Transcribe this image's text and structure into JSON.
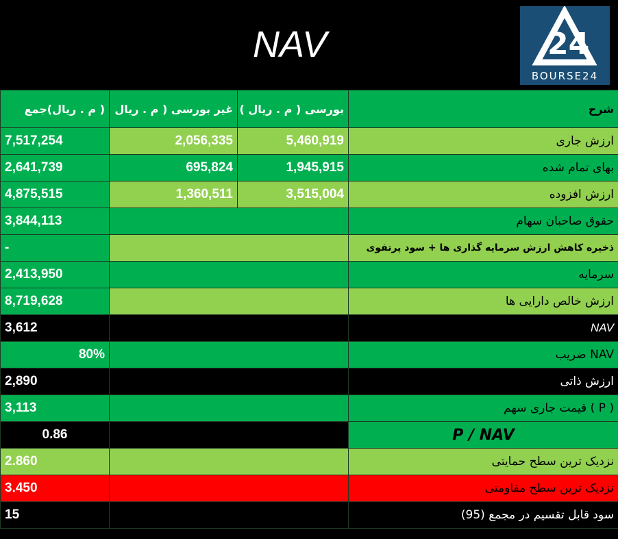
{
  "title": "NAV",
  "logo_text": "BOURSE24",
  "logo_mark": "24",
  "headers": {
    "total": "( م . ريال)جمع",
    "nonbourse": "غیر بورسی ( م . ریال )",
    "bourse": "بورسی ( م . ریال )",
    "desc": "شرح"
  },
  "rows": {
    "r1": {
      "total": "7,517,254",
      "nonbourse": "2,056,335",
      "bourse": "5,460,919",
      "label": "ارزش جاری"
    },
    "r2": {
      "total": "2,641,739",
      "nonbourse": "695,824",
      "bourse": "1,945,915",
      "label": "بهای تمام شده"
    },
    "r3": {
      "total": "4,875,515",
      "nonbourse": "1,360,511",
      "bourse": "3,515,004",
      "label": "ارزش افزوده"
    },
    "r4": {
      "total": "3,844,113",
      "label": "حقوق صاحبان سهام"
    },
    "r5": {
      "total": "-",
      "label": "ذخیره کاهش ارزش سرمایه گذاری ها + سود پرتفوی"
    },
    "r6": {
      "total": "2,413,950",
      "label": "سرمایه"
    },
    "r7": {
      "total": "8,719,628",
      "label": "ارزش خالص دارایی ها"
    },
    "r8": {
      "total": "3,612",
      "label": "NAV"
    },
    "r9": {
      "total": "80%",
      "label": "NAV ضریب"
    },
    "r10": {
      "total": "2,890",
      "label": "ارزش ذاتی"
    },
    "r11": {
      "total": "3,113",
      "label": "( P ) قیمت جاری سهم"
    },
    "r12": {
      "total": "0.86",
      "label": "P / NAV"
    },
    "r13": {
      "total": "2.860",
      "label": "نزدیک ترین سطح حمایتی"
    },
    "r14": {
      "total": "3.450",
      "label": "نزدیک ترین سطح مقاومتی"
    },
    "r15": {
      "total": "15",
      "label": "سود قابل تقسیم در مجمع (95)"
    }
  },
  "colors": {
    "dark_green": "#00b050",
    "light_green": "#92d050",
    "red": "#ff0000",
    "black": "#000000",
    "logo_blue": "#1b4e74"
  }
}
